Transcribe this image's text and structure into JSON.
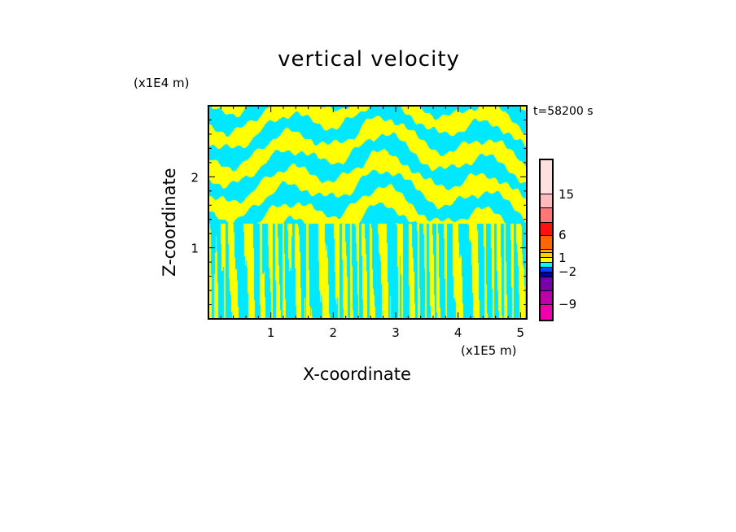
{
  "chart_data": {
    "type": "heatmap",
    "title": "vertical velocity",
    "xlabel": "X-coordinate",
    "ylabel": "Z-coordinate",
    "x_unit": "(x1E5 m)",
    "y_unit": "(x1E4 m)",
    "annotation": "t=58200 s",
    "xlim": [
      0,
      5.1
    ],
    "ylim": [
      0,
      3.0
    ],
    "xticks": [
      "1",
      "2",
      "3",
      "4",
      "5"
    ],
    "xtick_values": [
      1,
      2,
      3,
      4,
      5
    ],
    "yticks": [
      "1",
      "2"
    ],
    "ytick_values": [
      1,
      2
    ],
    "field_colors": {
      "positive": "#ffff00",
      "negative": "#00e8ff"
    },
    "colorbar": {
      "colors": [
        "#ffe0e0",
        "#ffbbbb",
        "#ff7777",
        "#ff1111",
        "#ff6600",
        "#ffaa00",
        "#ffd000",
        "#ffff00",
        "#00ffff",
        "#0044ff",
        "#0000aa",
        "#7700aa",
        "#bb00aa",
        "#ee00aa"
      ],
      "labels": [
        "15",
        "6",
        "1",
        "−2",
        "−9"
      ],
      "label_levels": [
        15,
        6,
        1,
        -2,
        -9
      ]
    }
  }
}
